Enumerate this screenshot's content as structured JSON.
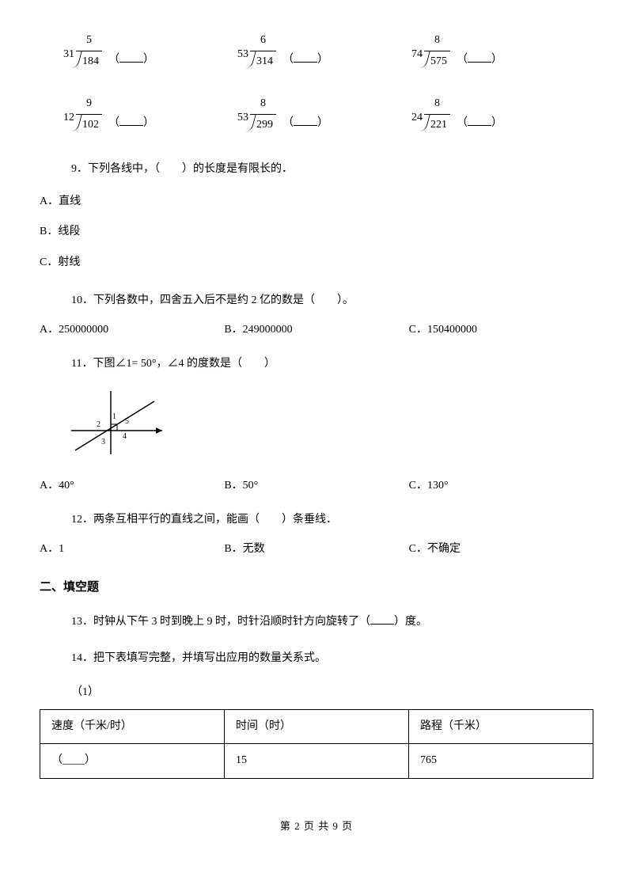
{
  "divisions": [
    {
      "divisor": "31",
      "quotient": "5",
      "dividend": "184"
    },
    {
      "divisor": "53",
      "quotient": "6",
      "dividend": "314"
    },
    {
      "divisor": "74",
      "quotient": "8",
      "dividend": "575"
    },
    {
      "divisor": "12",
      "quotient": "9",
      "dividend": "102"
    },
    {
      "divisor": "53",
      "quotient": "8",
      "dividend": "299"
    },
    {
      "divisor": "24",
      "quotient": "8",
      "dividend": "221"
    }
  ],
  "q9": {
    "text": "9．下列各线中，（　　）的长度是有限长的．",
    "options": {
      "a": "A．直线",
      "b": "B．线段",
      "c": "C．射线"
    }
  },
  "q10": {
    "text": "10．下列各数中，四舍五入后不是约 2 亿的数是（　　）。",
    "options": {
      "a": "A．250000000",
      "b": "B．249000000",
      "c": "C．150400000"
    }
  },
  "q11": {
    "text": "11．下图∠1= 50°，∠4 的度数是（　　）",
    "options": {
      "a": "A．40°",
      "b": "B．50°",
      "c": "C．130°"
    },
    "diagram_labels": {
      "l1": "1",
      "l2": "2",
      "l3": "3",
      "l4": "4",
      "l5": "5"
    }
  },
  "q12": {
    "text": "12．两条互相平行的直线之间，能画（　　）条垂线．",
    "options": {
      "a": "A．1",
      "b": "B．无数",
      "c": "C．不确定"
    }
  },
  "section2": "二、填空题",
  "q13": {
    "prefix": "13．时钟从下午 3 时到晚上 9 时，时针沿顺时针方向旋转了（",
    "suffix": "）度。"
  },
  "q14": {
    "text": "14．把下表填写完整，并填写出应用的数量关系式。",
    "sub": "（1）",
    "table": {
      "headers": [
        "速度（千米/时）",
        "时间（时）",
        "路程（千米）"
      ],
      "row": [
        "（____）",
        "15",
        "765"
      ]
    }
  },
  "footer": "第 2 页 共 9 页"
}
